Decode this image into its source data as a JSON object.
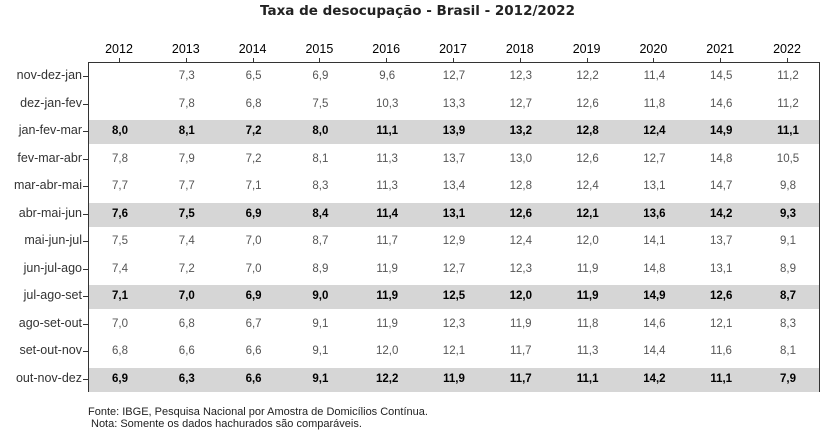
{
  "chart_data": {
    "type": "table",
    "title": "Taxa de desocupação - Brasil - 2012/2022",
    "columns": [
      "2012",
      "2013",
      "2014",
      "2015",
      "2016",
      "2017",
      "2018",
      "2019",
      "2020",
      "2021",
      "2022"
    ],
    "rows": [
      {
        "label": "nov-dez-jan",
        "highlight": false,
        "values": [
          "",
          "7,3",
          "6,5",
          "6,9",
          "9,6",
          "12,7",
          "12,3",
          "12,2",
          "11,4",
          "14,5",
          "11,2"
        ]
      },
      {
        "label": "dez-jan-fev",
        "highlight": false,
        "values": [
          "",
          "7,8",
          "6,8",
          "7,5",
          "10,3",
          "13,3",
          "12,7",
          "12,6",
          "11,8",
          "14,6",
          "11,2"
        ]
      },
      {
        "label": "jan-fev-mar",
        "highlight": true,
        "values": [
          "8,0",
          "8,1",
          "7,2",
          "8,0",
          "11,1",
          "13,9",
          "13,2",
          "12,8",
          "12,4",
          "14,9",
          "11,1"
        ]
      },
      {
        "label": "fev-mar-abr",
        "highlight": false,
        "values": [
          "7,8",
          "7,9",
          "7,2",
          "8,1",
          "11,3",
          "13,7",
          "13,0",
          "12,6",
          "12,7",
          "14,8",
          "10,5"
        ]
      },
      {
        "label": "mar-abr-mai",
        "highlight": false,
        "values": [
          "7,7",
          "7,7",
          "7,1",
          "8,3",
          "11,3",
          "13,4",
          "12,8",
          "12,4",
          "13,1",
          "14,7",
          "9,8"
        ]
      },
      {
        "label": "abr-mai-jun",
        "highlight": true,
        "values": [
          "7,6",
          "7,5",
          "6,9",
          "8,4",
          "11,4",
          "13,1",
          "12,6",
          "12,1",
          "13,6",
          "14,2",
          "9,3"
        ]
      },
      {
        "label": "mai-jun-jul",
        "highlight": false,
        "values": [
          "7,5",
          "7,4",
          "7,0",
          "8,7",
          "11,7",
          "12,9",
          "12,4",
          "12,0",
          "14,1",
          "13,7",
          "9,1"
        ]
      },
      {
        "label": "jun-jul-ago",
        "highlight": false,
        "values": [
          "7,4",
          "7,2",
          "7,0",
          "8,9",
          "11,9",
          "12,7",
          "12,3",
          "11,9",
          "14,8",
          "13,1",
          "8,9"
        ]
      },
      {
        "label": "jul-ago-set",
        "highlight": true,
        "values": [
          "7,1",
          "7,0",
          "6,9",
          "9,0",
          "11,9",
          "12,5",
          "12,0",
          "11,9",
          "14,9",
          "12,6",
          "8,7"
        ]
      },
      {
        "label": "ago-set-out",
        "highlight": false,
        "values": [
          "7,0",
          "6,8",
          "6,7",
          "9,1",
          "11,9",
          "12,3",
          "11,9",
          "11,8",
          "14,6",
          "12,1",
          "8,3"
        ]
      },
      {
        "label": "set-out-nov",
        "highlight": false,
        "values": [
          "6,8",
          "6,6",
          "6,6",
          "9,1",
          "12,0",
          "12,1",
          "11,7",
          "11,3",
          "14,4",
          "11,6",
          "8,1"
        ]
      },
      {
        "label": "out-nov-dez",
        "highlight": true,
        "values": [
          "6,9",
          "6,3",
          "6,6",
          "9,1",
          "12,2",
          "11,9",
          "11,7",
          "11,1",
          "14,2",
          "11,1",
          "7,9"
        ]
      }
    ],
    "source": "Fonte: IBGE, Pesquisa Nacional por Amostra de Domicílios Contínua.",
    "note": "Nota: Somente os dados hachurados são comparáveis."
  }
}
